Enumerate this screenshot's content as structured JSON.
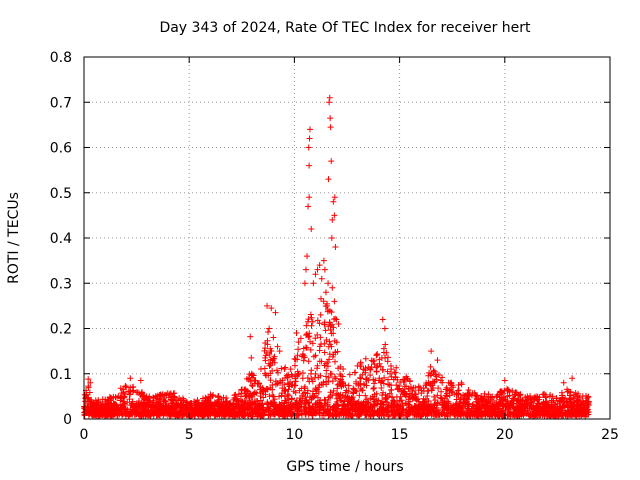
{
  "chart_data": {
    "type": "scatter",
    "title": "Day 343 of 2024, Rate Of TEC Index for receiver hert",
    "xlabel": "GPS time / hours",
    "ylabel": "ROTI / TECUs",
    "xlim": [
      0,
      25
    ],
    "ylim": [
      0,
      0.8
    ],
    "xticks": [
      "0",
      "5",
      "10",
      "15",
      "20",
      "25"
    ],
    "yticks": [
      "0",
      "0.1",
      "0.2",
      "0.3",
      "0.4",
      "0.5",
      "0.6",
      "0.7",
      "0.8"
    ],
    "grid": true,
    "marker": "+",
    "color": "#ff0000",
    "envelope": [
      [
        0.0,
        0.05
      ],
      [
        0.2,
        0.08
      ],
      [
        0.4,
        0.04
      ],
      [
        0.8,
        0.045
      ],
      [
        1.2,
        0.05
      ],
      [
        1.6,
        0.06
      ],
      [
        1.8,
        0.075
      ],
      [
        2.2,
        0.082
      ],
      [
        2.6,
        0.07
      ],
      [
        3.0,
        0.05
      ],
      [
        3.5,
        0.055
      ],
      [
        4.0,
        0.06
      ],
      [
        4.5,
        0.055
      ],
      [
        5.0,
        0.035
      ],
      [
        5.5,
        0.045
      ],
      [
        6.0,
        0.055
      ],
      [
        6.5,
        0.05
      ],
      [
        7.0,
        0.045
      ],
      [
        7.5,
        0.07
      ],
      [
        7.9,
        0.11
      ],
      [
        8.3,
        0.08
      ],
      [
        8.7,
        0.2
      ],
      [
        9.0,
        0.15
      ],
      [
        9.4,
        0.12
      ],
      [
        9.8,
        0.11
      ],
      [
        10.1,
        0.15
      ],
      [
        10.4,
        0.2
      ],
      [
        10.7,
        0.25
      ],
      [
        11.0,
        0.2
      ],
      [
        11.3,
        0.28
      ],
      [
        11.6,
        0.25
      ],
      [
        11.9,
        0.24
      ],
      [
        12.2,
        0.12
      ],
      [
        12.6,
        0.1
      ],
      [
        13.0,
        0.12
      ],
      [
        13.4,
        0.14
      ],
      [
        13.8,
        0.15
      ],
      [
        14.2,
        0.18
      ],
      [
        14.6,
        0.13
      ],
      [
        15.0,
        0.12
      ],
      [
        15.5,
        0.09
      ],
      [
        16.0,
        0.07
      ],
      [
        16.5,
        0.12
      ],
      [
        17.0,
        0.1
      ],
      [
        17.5,
        0.08
      ],
      [
        18.0,
        0.08
      ],
      [
        18.5,
        0.06
      ],
      [
        19.0,
        0.06
      ],
      [
        19.5,
        0.05
      ],
      [
        20.0,
        0.07
      ],
      [
        20.5,
        0.06
      ],
      [
        21.0,
        0.05
      ],
      [
        21.5,
        0.06
      ],
      [
        22.0,
        0.055
      ],
      [
        22.5,
        0.05
      ],
      [
        23.0,
        0.07
      ],
      [
        23.5,
        0.055
      ],
      [
        24.0,
        0.05
      ]
    ],
    "points": [
      [
        0.2,
        0.088
      ],
      [
        0.3,
        0.08
      ],
      [
        2.2,
        0.09
      ],
      [
        2.7,
        0.085
      ],
      [
        7.9,
        0.182
      ],
      [
        7.95,
        0.135
      ],
      [
        8.7,
        0.25
      ],
      [
        8.8,
        0.2
      ],
      [
        8.9,
        0.245
      ],
      [
        9.0,
        0.18
      ],
      [
        9.1,
        0.235
      ],
      [
        9.3,
        0.15
      ],
      [
        9.2,
        0.16
      ],
      [
        10.1,
        0.19
      ],
      [
        10.2,
        0.17
      ],
      [
        10.4,
        0.09
      ],
      [
        10.5,
        0.3
      ],
      [
        10.55,
        0.33
      ],
      [
        10.6,
        0.36
      ],
      [
        10.65,
        0.47
      ],
      [
        10.7,
        0.49
      ],
      [
        10.68,
        0.6
      ],
      [
        10.72,
        0.62
      ],
      [
        10.74,
        0.64
      ],
      [
        10.7,
        0.56
      ],
      [
        10.8,
        0.42
      ],
      [
        10.9,
        0.3
      ],
      [
        11.0,
        0.32
      ],
      [
        11.1,
        0.33
      ],
      [
        11.2,
        0.34
      ],
      [
        11.25,
        0.23
      ],
      [
        11.3,
        0.31
      ],
      [
        11.4,
        0.35
      ],
      [
        11.45,
        0.33
      ],
      [
        11.5,
        0.28
      ],
      [
        11.55,
        0.25
      ],
      [
        11.6,
        0.3
      ],
      [
        11.62,
        0.53
      ],
      [
        11.65,
        0.7
      ],
      [
        11.68,
        0.71
      ],
      [
        11.7,
        0.665
      ],
      [
        11.72,
        0.645
      ],
      [
        11.75,
        0.57
      ],
      [
        11.78,
        0.4
      ],
      [
        11.8,
        0.44
      ],
      [
        11.85,
        0.48
      ],
      [
        11.9,
        0.45
      ],
      [
        11.92,
        0.49
      ],
      [
        11.95,
        0.38
      ],
      [
        11.8,
        0.29
      ],
      [
        11.9,
        0.26
      ],
      [
        12.0,
        0.22
      ],
      [
        12.1,
        0.21
      ],
      [
        14.2,
        0.22
      ],
      [
        14.3,
        0.2
      ],
      [
        16.5,
        0.15
      ],
      [
        16.8,
        0.13
      ],
      [
        23.2,
        0.09
      ],
      [
        22.8,
        0.08
      ],
      [
        20.0,
        0.085
      ]
    ]
  }
}
